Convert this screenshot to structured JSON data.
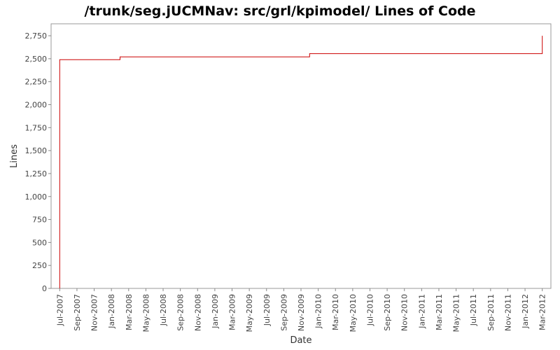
{
  "chart_data": {
    "type": "line",
    "title": "/trunk/seg.jUCMNav: src/grl/kpimodel/ Lines of Code",
    "x_label": "Date",
    "y_label": "Lines",
    "x": [
      "2007-07",
      "2007-07",
      "2008-02",
      "2008-02",
      "2009-12",
      "2009-12",
      "2012-03",
      "2012-03"
    ],
    "series": [
      {
        "name": "Lines",
        "color": "#cc0000",
        "values": [
          0,
          2490,
          2490,
          2520,
          2520,
          2555,
          2555,
          2750
        ]
      }
    ],
    "xlim": [
      "2007-06",
      "2012-04"
    ],
    "xticks": [
      {
        "value": "2007-07",
        "label": "Jul-2007"
      },
      {
        "value": "2007-09",
        "label": "Sep-2007"
      },
      {
        "value": "2007-11",
        "label": "Nov-2007"
      },
      {
        "value": "2008-01",
        "label": "Jan-2008"
      },
      {
        "value": "2008-03",
        "label": "Mar-2008"
      },
      {
        "value": "2008-05",
        "label": "May-2008"
      },
      {
        "value": "2008-07",
        "label": "Jul-2008"
      },
      {
        "value": "2008-09",
        "label": "Sep-2008"
      },
      {
        "value": "2008-11",
        "label": "Nov-2008"
      },
      {
        "value": "2009-01",
        "label": "Jan-2009"
      },
      {
        "value": "2009-03",
        "label": "Mar-2009"
      },
      {
        "value": "2009-05",
        "label": "May-2009"
      },
      {
        "value": "2009-07",
        "label": "Jul-2009"
      },
      {
        "value": "2009-09",
        "label": "Sep-2009"
      },
      {
        "value": "2009-11",
        "label": "Nov-2009"
      },
      {
        "value": "2010-01",
        "label": "Jan-2010"
      },
      {
        "value": "2010-03",
        "label": "Mar-2010"
      },
      {
        "value": "2010-05",
        "label": "May-2010"
      },
      {
        "value": "2010-07",
        "label": "Jul-2010"
      },
      {
        "value": "2010-09",
        "label": "Sep-2010"
      },
      {
        "value": "2010-11",
        "label": "Nov-2010"
      },
      {
        "value": "2011-01",
        "label": "Jan-2011"
      },
      {
        "value": "2011-03",
        "label": "Mar-2011"
      },
      {
        "value": "2011-05",
        "label": "May-2011"
      },
      {
        "value": "2011-07",
        "label": "Jul-2011"
      },
      {
        "value": "2011-09",
        "label": "Sep-2011"
      },
      {
        "value": "2011-11",
        "label": "Nov-2011"
      },
      {
        "value": "2012-01",
        "label": "Jan-2012"
      },
      {
        "value": "2012-03",
        "label": "Mar-2012"
      }
    ],
    "ylim": [
      0,
      2880
    ],
    "yticks": [
      0,
      250,
      500,
      750,
      {
        "value": 1000,
        "label": "1,000"
      },
      {
        "value": 1250,
        "label": "1,250"
      },
      {
        "value": 1500,
        "label": "1,500"
      },
      {
        "value": 1750,
        "label": "1,750"
      },
      {
        "value": 2000,
        "label": "2,000"
      },
      {
        "value": 2250,
        "label": "2,250"
      },
      {
        "value": 2500,
        "label": "2,500"
      },
      {
        "value": 2750,
        "label": "2,750"
      }
    ]
  }
}
